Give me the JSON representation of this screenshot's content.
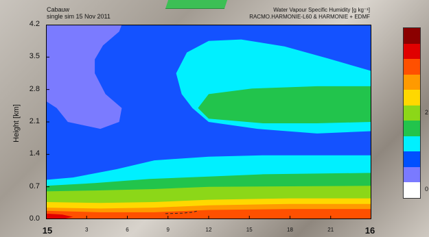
{
  "header": {
    "site": "Cabauw",
    "experiment": "single sim  15 Nov 2011",
    "title_line1": "Water Vapour Specific Humidity  [g kg⁻¹]",
    "title_line2": "RACMO.HARMONIE-L60 & HARMONIE + EDMF"
  },
  "chart_data": {
    "type": "heatmap",
    "ylabel": "Height  [km]",
    "ylim": [
      0.0,
      4.2
    ],
    "xlim": [
      15,
      16
    ],
    "y_ticks": [
      "0.0",
      "0.7",
      "1.4",
      "2.1",
      "2.8",
      "3.5",
      "4.2"
    ],
    "x_ticks": [
      {
        "value": 15,
        "label": "15",
        "major": true
      },
      {
        "value": 15.125,
        "label": "3",
        "major": false
      },
      {
        "value": 15.25,
        "label": "6",
        "major": false
      },
      {
        "value": 15.375,
        "label": "9",
        "major": false
      },
      {
        "value": 15.5,
        "label": "12",
        "major": false
      },
      {
        "value": 15.625,
        "label": "15",
        "major": false
      },
      {
        "value": 15.75,
        "label": "18",
        "major": false
      },
      {
        "value": 15.875,
        "label": "21",
        "major": false
      },
      {
        "value": 16,
        "label": "16",
        "major": true
      }
    ],
    "colorbar_colors": [
      "#8b0000",
      "#e00000",
      "#ff5000",
      "#ff9a00",
      "#ffd800",
      "#8cd718",
      "#22c44c",
      "#00f0ff",
      "#0050ff",
      "#7a7aff",
      "#ffffff"
    ],
    "colorbar_labels": [
      {
        "label": "2",
        "level_index": 5
      },
      {
        "label": "0",
        "level_index": 10
      }
    ],
    "regions": [
      {
        "fill": "#1452ff",
        "polygon": [
          [
            15,
            0
          ],
          [
            16,
            0
          ],
          [
            16,
            4.2
          ],
          [
            15,
            4.2
          ]
        ]
      },
      {
        "fill": "#7b7bff",
        "polygon": [
          [
            15,
            4.2
          ],
          [
            15.233,
            4.2
          ],
          [
            15.225,
            4.05
          ],
          [
            15.175,
            3.75
          ],
          [
            15.15,
            3.45
          ],
          [
            15.15,
            3.15
          ],
          [
            15.183,
            2.7
          ],
          [
            15.233,
            2.4
          ],
          [
            15.225,
            2.1
          ],
          [
            15.167,
            1.95
          ],
          [
            15.067,
            2.1
          ],
          [
            15.033,
            2.4
          ],
          [
            15.0,
            2.55
          ],
          [
            15,
            4.2
          ]
        ]
      },
      {
        "fill": "#00f0ff",
        "polygon": [
          [
            15.4,
            3.15
          ],
          [
            15.433,
            3.6
          ],
          [
            15.5,
            3.85
          ],
          [
            15.6,
            3.88
          ],
          [
            15.733,
            3.73
          ],
          [
            15.867,
            3.47
          ],
          [
            16,
            3.2
          ],
          [
            16,
            1.9
          ],
          [
            15.833,
            1.85
          ],
          [
            15.65,
            1.95
          ],
          [
            15.5,
            2.1
          ],
          [
            15.45,
            2.4
          ],
          [
            15.417,
            2.7
          ],
          [
            15.4,
            3.15
          ]
        ]
      },
      {
        "fill": "#00f0ff",
        "polygon": [
          [
            15,
            0.85
          ],
          [
            15.083,
            0.9
          ],
          [
            15.217,
            1.08
          ],
          [
            15.333,
            1.27
          ],
          [
            15.5,
            1.35
          ],
          [
            15.667,
            1.38
          ],
          [
            16,
            1.38
          ],
          [
            16,
            0
          ],
          [
            15,
            0
          ]
        ]
      },
      {
        "fill": "#22c44c",
        "polygon": [
          [
            15.467,
            2.4
          ],
          [
            15.5,
            2.7
          ],
          [
            15.633,
            2.82
          ],
          [
            15.833,
            2.87
          ],
          [
            16,
            2.87
          ],
          [
            16,
            2.1
          ],
          [
            15.833,
            2.07
          ],
          [
            15.667,
            2.07
          ],
          [
            15.5,
            2.17
          ],
          [
            15.467,
            2.4
          ]
        ]
      },
      {
        "fill": "#22c44c",
        "polygon": [
          [
            15,
            0.72
          ],
          [
            15.15,
            0.78
          ],
          [
            15.317,
            0.87
          ],
          [
            15.5,
            0.92
          ],
          [
            15.667,
            0.97
          ],
          [
            16,
            1.0
          ],
          [
            16,
            0
          ],
          [
            15,
            0
          ]
        ]
      },
      {
        "fill": "#8cd718",
        "polygon": [
          [
            15,
            0.6
          ],
          [
            15.15,
            0.62
          ],
          [
            15.333,
            0.65
          ],
          [
            15.5,
            0.7
          ],
          [
            16,
            0.72
          ],
          [
            16,
            0
          ],
          [
            15,
            0
          ]
        ]
      },
      {
        "fill": "#ffd800",
        "polygon": [
          [
            15,
            0.37
          ],
          [
            15.167,
            0.35
          ],
          [
            15.333,
            0.37
          ],
          [
            15.5,
            0.42
          ],
          [
            15.75,
            0.45
          ],
          [
            16,
            0.45
          ],
          [
            16,
            0
          ],
          [
            15,
            0
          ]
        ]
      },
      {
        "fill": "#ff9a00",
        "polygon": [
          [
            15,
            0.25
          ],
          [
            15.167,
            0.23
          ],
          [
            15.333,
            0.25
          ],
          [
            15.5,
            0.3
          ],
          [
            15.75,
            0.33
          ],
          [
            16,
            0.33
          ],
          [
            16,
            0
          ],
          [
            15,
            0
          ]
        ]
      },
      {
        "fill": "#ff5000",
        "polygon": [
          [
            15,
            0.18
          ],
          [
            15.167,
            0.15
          ],
          [
            15.333,
            0.15
          ],
          [
            15.5,
            0.2
          ],
          [
            15.75,
            0.22
          ],
          [
            16,
            0.22
          ],
          [
            16,
            0
          ],
          [
            15,
            0
          ]
        ]
      },
      {
        "fill": "#e00000",
        "polygon": [
          [
            15,
            0.12
          ],
          [
            15.05,
            0.1
          ],
          [
            15.083,
            0.05
          ],
          [
            15.05,
            0
          ],
          [
            15,
            0
          ]
        ]
      }
    ],
    "dashed_contour": [
      [
        15.367,
        0.12
      ],
      [
        15.417,
        0.13
      ],
      [
        15.45,
        0.15
      ],
      [
        15.467,
        0.18
      ]
    ]
  }
}
